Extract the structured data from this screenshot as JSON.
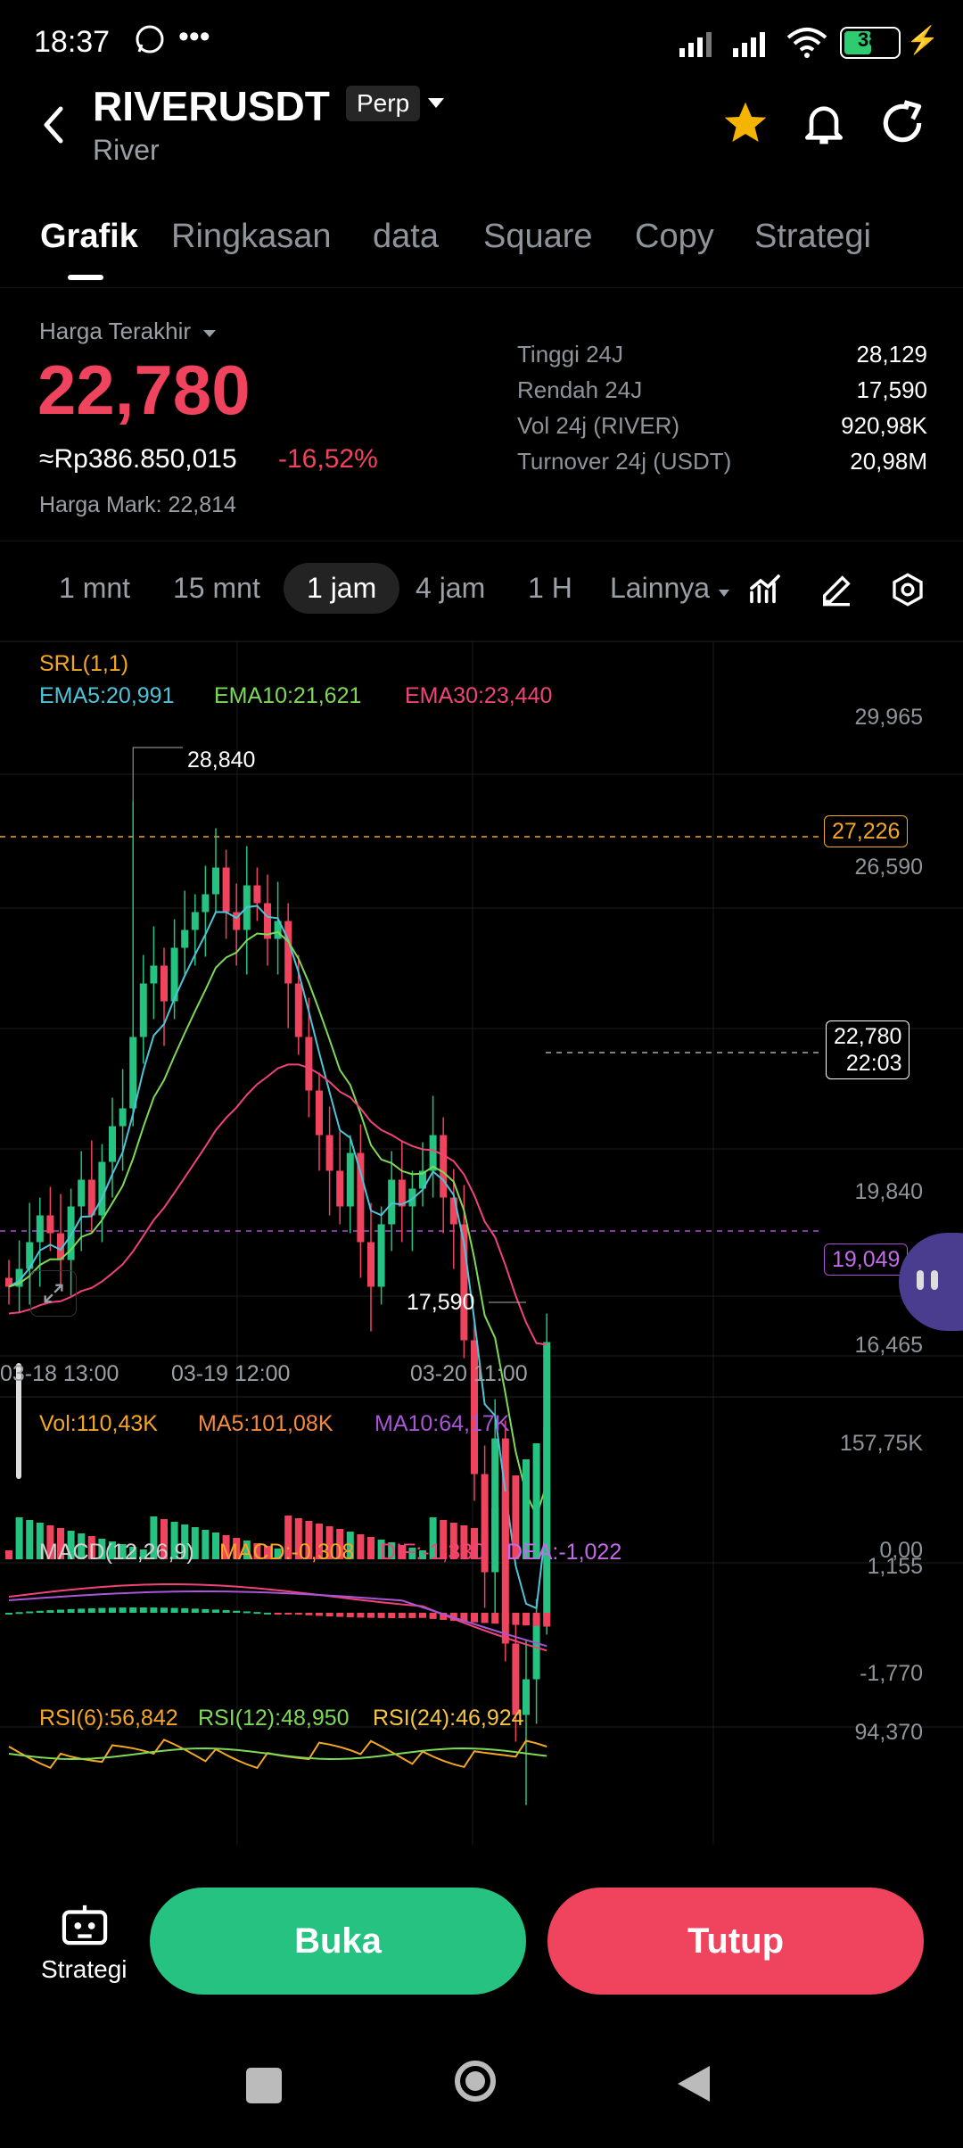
{
  "status": {
    "time": "18:37",
    "battery": "38"
  },
  "header": {
    "symbol": "RIVERUSDT",
    "badge": "Perp",
    "subtitle": "River"
  },
  "tabs": [
    "Grafik",
    "Ringkasan",
    "data",
    "Square",
    "Copy",
    "Strategi"
  ],
  "price": {
    "label": "Harga Terakhir",
    "last": "22,780",
    "rupiah": "≈Rp386.850,015",
    "change": "-16,52%",
    "mark_label": "Harga Mark:",
    "mark_value": "22,814"
  },
  "stats": [
    {
      "k": "Tinggi 24J",
      "v": "28,129"
    },
    {
      "k": "Rendah 24J",
      "v": "17,590"
    },
    {
      "k": "Vol 24j (RIVER)",
      "v": "920,98K"
    },
    {
      "k": "Turnover 24j (USDT)",
      "v": "20,98M"
    }
  ],
  "intervals": [
    "1 mnt",
    "15 mnt",
    "1 jam",
    "4 jam",
    "1 H",
    "Lainnya"
  ],
  "chart": {
    "srl": "SRL(1,1)",
    "ema5": "EMA5:20,991",
    "ema10": "EMA10:21,621",
    "ema30": "EMA30:23,440",
    "y_labels": [
      "29,965",
      "26,590",
      "19,840",
      "16,465"
    ],
    "high_label": "28,840",
    "low_label": "17,590",
    "box_orange": "27,226",
    "box_current_price": "22,780",
    "box_current_time": "22:03",
    "box_purple": "19,049",
    "x_labels": [
      "03-18 13:00",
      "03-19 12:00",
      "03-20 11:00"
    ],
    "vol": "Vol:110,43K",
    "ma5": "MA5:101,08K",
    "ma10": "MA10:64,17K",
    "vol_top": "157,75K",
    "vol_bottom": "0,00",
    "macd": "MACD(12,26,9)",
    "macd_val": "MACD:-0,308",
    "dif": "DIF:-1,330",
    "dea": "DEA:-1,022",
    "macd_top": "1,155",
    "macd_bottom": "-1,770",
    "rsi6": "RSI(6):56,842",
    "rsi12": "RSI(12):48,950",
    "rsi24": "RSI(24):46,924",
    "rsi_top": "94,370"
  },
  "bottom": {
    "strategy": "Strategi",
    "open": "Buka",
    "close": "Tutup"
  },
  "colors": {
    "up": "#26c281",
    "down": "#f0435e",
    "accent": "#f5a623"
  }
}
